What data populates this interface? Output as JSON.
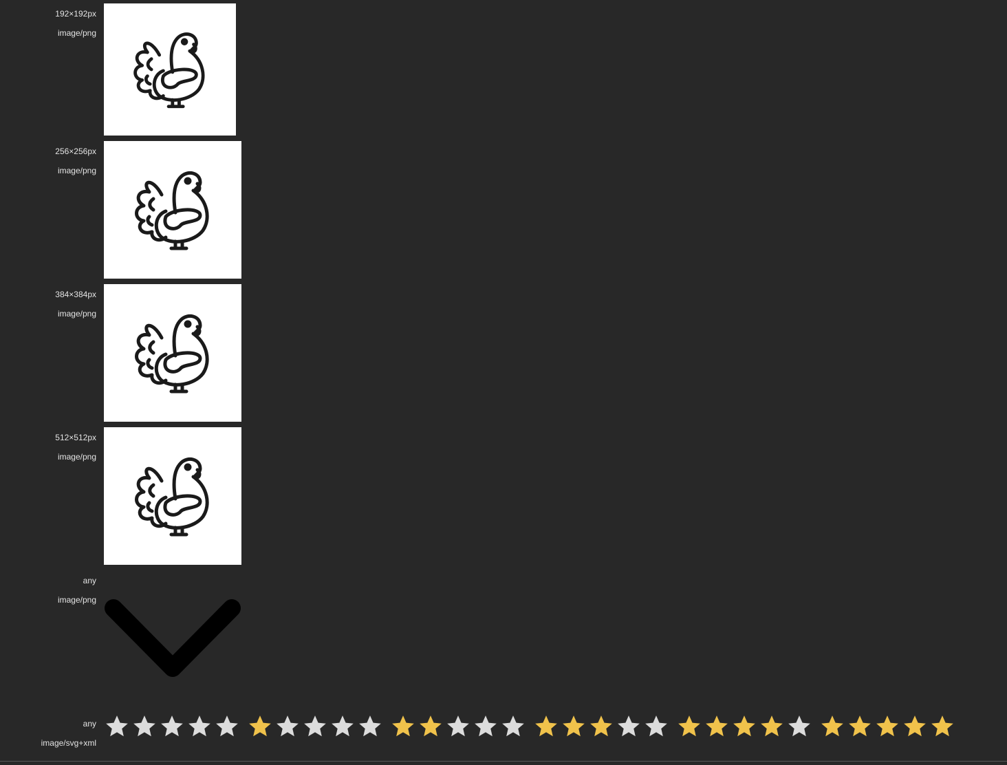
{
  "icons": [
    {
      "size": "192×192px",
      "type": "image/png",
      "icon": "turkey-icon"
    },
    {
      "size": "256×256px",
      "type": "image/png",
      "icon": "turkey-icon"
    },
    {
      "size": "384×384px",
      "type": "image/png",
      "icon": "turkey-icon"
    },
    {
      "size": "512×512px",
      "type": "image/png",
      "icon": "turkey-icon"
    },
    {
      "size": "any",
      "type": "image/png",
      "icon": "chevron-down-icon"
    },
    {
      "size": "any",
      "type": "image/svg+xml",
      "icon": "star-rating-icon"
    }
  ],
  "ratings": [
    {
      "filled": 0,
      "of": 5
    },
    {
      "filled": 1,
      "of": 5
    },
    {
      "filled": 2,
      "of": 5
    },
    {
      "filled": 3,
      "of": 5
    },
    {
      "filled": 4,
      "of": 5
    },
    {
      "filled": 5,
      "of": 5
    }
  ],
  "colors": {
    "background": "#282828",
    "label_text": "#e4e4e4",
    "star_filled": "#f0c24b",
    "star_empty": "#dcdcdc",
    "icon_stroke": "#1a1a1a",
    "chevron": "#000000"
  }
}
